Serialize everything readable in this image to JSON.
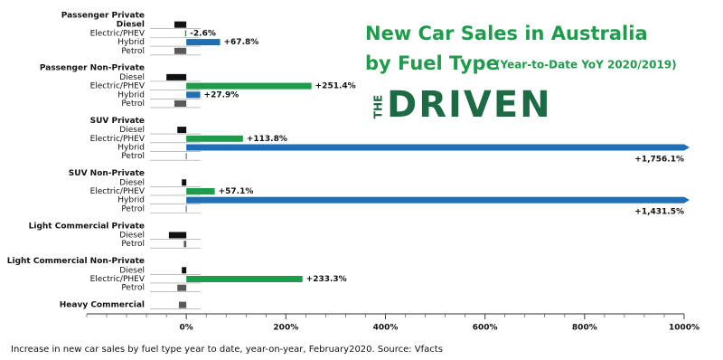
{
  "chart_data": {
    "type": "grouped-hbar",
    "title": "New Car Sales in Australia",
    "title_line2": "by Fuel Type",
    "subtitle": "(Year-to-Date YoY 2020/2019)",
    "logo": {
      "small": "THE",
      "main": "DRIVEN"
    },
    "caption": "Increase in new car sales by fuel type year to date, year-on-year, February2020. Source: Vfacts",
    "xlim": [
      -200,
      1000
    ],
    "xticks": [
      {
        "value": 0,
        "label": "0%"
      },
      {
        "value": 200,
        "label": "200%"
      },
      {
        "value": 400,
        "label": "400%"
      },
      {
        "value": 600,
        "label": "600%"
      },
      {
        "value": 800,
        "label": "800%"
      },
      {
        "value": 1000,
        "label": "1000%"
      }
    ],
    "groups": [
      {
        "name": "Passenger Private",
        "categories": [
          "Diesel",
          "Electric/PHEV",
          "Hybrid",
          "Petrol"
        ],
        "values": [
          -24,
          -2.6,
          67.8,
          -24
        ],
        "value_labels": [
          null,
          "-2.6%",
          "+67.8%",
          null
        ],
        "colors": [
          "#111111",
          "#1e9b4b",
          "#1f6fb6",
          "#58595b"
        ]
      },
      {
        "name": "Passenger Non-Private",
        "categories": [
          "Diesel",
          "Electric/PHEV",
          "Hybrid",
          "Petrol"
        ],
        "values": [
          -40,
          251.4,
          27.9,
          -24
        ],
        "value_labels": [
          null,
          "+251.4%",
          "+27.9%",
          null
        ],
        "colors": [
          "#111111",
          "#1e9b4b",
          "#1f6fb6",
          "#58595b"
        ]
      },
      {
        "name": "SUV Private",
        "categories": [
          "Diesel",
          "Electric/PHEV",
          "Hybrid",
          "Petrol"
        ],
        "values": [
          -18,
          113.8,
          1756.1,
          -1
        ],
        "value_labels": [
          null,
          "+113.8%",
          "+1,756.1%",
          null
        ],
        "colors": [
          "#111111",
          "#1e9b4b",
          "#1f6fb6",
          "#58595b"
        ]
      },
      {
        "name": "SUV Non-Private",
        "categories": [
          "Diesel",
          "Electric/PHEV",
          "Hybrid",
          "Petrol"
        ],
        "values": [
          -9,
          57.1,
          1431.5,
          -1
        ],
        "value_labels": [
          null,
          "+57.1%",
          "+1,431.5%",
          null
        ],
        "colors": [
          "#111111",
          "#1e9b4b",
          "#1f6fb6",
          "#58595b"
        ]
      },
      {
        "name": "Light Commercial Private",
        "categories": [
          "Diesel",
          "Petrol"
        ],
        "values": [
          -35,
          -5
        ],
        "value_labels": [
          null,
          null
        ],
        "colors": [
          "#111111",
          "#58595b"
        ]
      },
      {
        "name": "Light Commercial Non-Private",
        "categories": [
          "Diesel",
          "Electric/PHEV",
          "Petrol"
        ],
        "values": [
          -9,
          233.3,
          -18
        ],
        "value_labels": [
          null,
          "+233.3%",
          null
        ],
        "colors": [
          "#111111",
          "#1e9b4b",
          "#58595b"
        ]
      },
      {
        "name": "Heavy Commercial",
        "categories": [
          null
        ],
        "values": [
          -15
        ],
        "value_labels": [
          null
        ],
        "colors": [
          "#58595b"
        ]
      }
    ]
  }
}
